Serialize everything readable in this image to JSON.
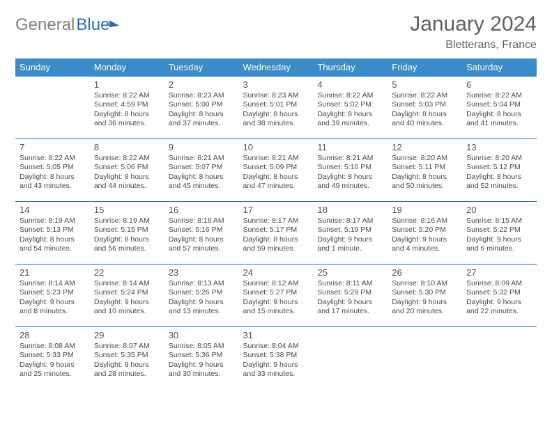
{
  "logo": {
    "part1": "General",
    "part2": "Blue"
  },
  "title": "January 2024",
  "location": "Bletterans, France",
  "weekdays": [
    "Sunday",
    "Monday",
    "Tuesday",
    "Wednesday",
    "Thursday",
    "Friday",
    "Saturday"
  ],
  "colors": {
    "header_bg": "#3b8bc9",
    "header_text": "#ffffff",
    "border": "#2a6db6",
    "logo_gray": "#808080",
    "logo_blue": "#2a6db6",
    "text": "#4a4a4a"
  },
  "weeks": [
    [
      null,
      {
        "n": "1",
        "sunrise": "Sunrise: 8:22 AM",
        "sunset": "Sunset: 4:59 PM",
        "day1": "Daylight: 8 hours",
        "day2": "and 36 minutes."
      },
      {
        "n": "2",
        "sunrise": "Sunrise: 8:23 AM",
        "sunset": "Sunset: 5:00 PM",
        "day1": "Daylight: 8 hours",
        "day2": "and 37 minutes."
      },
      {
        "n": "3",
        "sunrise": "Sunrise: 8:23 AM",
        "sunset": "Sunset: 5:01 PM",
        "day1": "Daylight: 8 hours",
        "day2": "and 38 minutes."
      },
      {
        "n": "4",
        "sunrise": "Sunrise: 8:22 AM",
        "sunset": "Sunset: 5:02 PM",
        "day1": "Daylight: 8 hours",
        "day2": "and 39 minutes."
      },
      {
        "n": "5",
        "sunrise": "Sunrise: 8:22 AM",
        "sunset": "Sunset: 5:03 PM",
        "day1": "Daylight: 8 hours",
        "day2": "and 40 minutes."
      },
      {
        "n": "6",
        "sunrise": "Sunrise: 8:22 AM",
        "sunset": "Sunset: 5:04 PM",
        "day1": "Daylight: 8 hours",
        "day2": "and 41 minutes."
      }
    ],
    [
      {
        "n": "7",
        "sunrise": "Sunrise: 8:22 AM",
        "sunset": "Sunset: 5:05 PM",
        "day1": "Daylight: 8 hours",
        "day2": "and 43 minutes."
      },
      {
        "n": "8",
        "sunrise": "Sunrise: 8:22 AM",
        "sunset": "Sunset: 5:06 PM",
        "day1": "Daylight: 8 hours",
        "day2": "and 44 minutes."
      },
      {
        "n": "9",
        "sunrise": "Sunrise: 8:21 AM",
        "sunset": "Sunset: 5:07 PM",
        "day1": "Daylight: 8 hours",
        "day2": "and 45 minutes."
      },
      {
        "n": "10",
        "sunrise": "Sunrise: 8:21 AM",
        "sunset": "Sunset: 5:09 PM",
        "day1": "Daylight: 8 hours",
        "day2": "and 47 minutes."
      },
      {
        "n": "11",
        "sunrise": "Sunrise: 8:21 AM",
        "sunset": "Sunset: 5:10 PM",
        "day1": "Daylight: 8 hours",
        "day2": "and 49 minutes."
      },
      {
        "n": "12",
        "sunrise": "Sunrise: 8:20 AM",
        "sunset": "Sunset: 5:11 PM",
        "day1": "Daylight: 8 hours",
        "day2": "and 50 minutes."
      },
      {
        "n": "13",
        "sunrise": "Sunrise: 8:20 AM",
        "sunset": "Sunset: 5:12 PM",
        "day1": "Daylight: 8 hours",
        "day2": "and 52 minutes."
      }
    ],
    [
      {
        "n": "14",
        "sunrise": "Sunrise: 8:19 AM",
        "sunset": "Sunset: 5:13 PM",
        "day1": "Daylight: 8 hours",
        "day2": "and 54 minutes."
      },
      {
        "n": "15",
        "sunrise": "Sunrise: 8:19 AM",
        "sunset": "Sunset: 5:15 PM",
        "day1": "Daylight: 8 hours",
        "day2": "and 56 minutes."
      },
      {
        "n": "16",
        "sunrise": "Sunrise: 8:18 AM",
        "sunset": "Sunset: 5:16 PM",
        "day1": "Daylight: 8 hours",
        "day2": "and 57 minutes."
      },
      {
        "n": "17",
        "sunrise": "Sunrise: 8:17 AM",
        "sunset": "Sunset: 5:17 PM",
        "day1": "Daylight: 8 hours",
        "day2": "and 59 minutes."
      },
      {
        "n": "18",
        "sunrise": "Sunrise: 8:17 AM",
        "sunset": "Sunset: 5:19 PM",
        "day1": "Daylight: 9 hours",
        "day2": "and 1 minute."
      },
      {
        "n": "19",
        "sunrise": "Sunrise: 8:16 AM",
        "sunset": "Sunset: 5:20 PM",
        "day1": "Daylight: 9 hours",
        "day2": "and 4 minutes."
      },
      {
        "n": "20",
        "sunrise": "Sunrise: 8:15 AM",
        "sunset": "Sunset: 5:22 PM",
        "day1": "Daylight: 9 hours",
        "day2": "and 6 minutes."
      }
    ],
    [
      {
        "n": "21",
        "sunrise": "Sunrise: 8:14 AM",
        "sunset": "Sunset: 5:23 PM",
        "day1": "Daylight: 9 hours",
        "day2": "and 8 minutes."
      },
      {
        "n": "22",
        "sunrise": "Sunrise: 8:14 AM",
        "sunset": "Sunset: 5:24 PM",
        "day1": "Daylight: 9 hours",
        "day2": "and 10 minutes."
      },
      {
        "n": "23",
        "sunrise": "Sunrise: 8:13 AM",
        "sunset": "Sunset: 5:26 PM",
        "day1": "Daylight: 9 hours",
        "day2": "and 13 minutes."
      },
      {
        "n": "24",
        "sunrise": "Sunrise: 8:12 AM",
        "sunset": "Sunset: 5:27 PM",
        "day1": "Daylight: 9 hours",
        "day2": "and 15 minutes."
      },
      {
        "n": "25",
        "sunrise": "Sunrise: 8:11 AM",
        "sunset": "Sunset: 5:29 PM",
        "day1": "Daylight: 9 hours",
        "day2": "and 17 minutes."
      },
      {
        "n": "26",
        "sunrise": "Sunrise: 8:10 AM",
        "sunset": "Sunset: 5:30 PM",
        "day1": "Daylight: 9 hours",
        "day2": "and 20 minutes."
      },
      {
        "n": "27",
        "sunrise": "Sunrise: 8:09 AM",
        "sunset": "Sunset: 5:32 PM",
        "day1": "Daylight: 9 hours",
        "day2": "and 22 minutes."
      }
    ],
    [
      {
        "n": "28",
        "sunrise": "Sunrise: 8:08 AM",
        "sunset": "Sunset: 5:33 PM",
        "day1": "Daylight: 9 hours",
        "day2": "and 25 minutes."
      },
      {
        "n": "29",
        "sunrise": "Sunrise: 8:07 AM",
        "sunset": "Sunset: 5:35 PM",
        "day1": "Daylight: 9 hours",
        "day2": "and 28 minutes."
      },
      {
        "n": "30",
        "sunrise": "Sunrise: 8:05 AM",
        "sunset": "Sunset: 5:36 PM",
        "day1": "Daylight: 9 hours",
        "day2": "and 30 minutes."
      },
      {
        "n": "31",
        "sunrise": "Sunrise: 8:04 AM",
        "sunset": "Sunset: 5:38 PM",
        "day1": "Daylight: 9 hours",
        "day2": "and 33 minutes."
      },
      null,
      null,
      null
    ]
  ]
}
